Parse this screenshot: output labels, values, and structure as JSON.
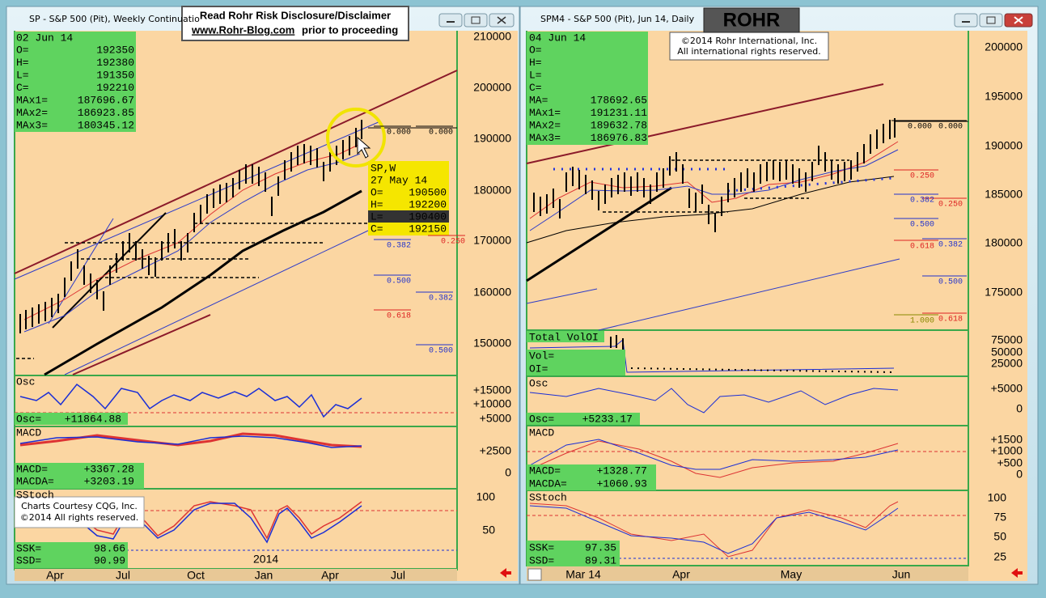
{
  "left_window": {
    "title": "SP - S&P 500 (Pit), Weekly Continuatio",
    "disclaimer": {
      "heading": "Read Rohr Risk Disclosure/Disclaimer",
      "link": "www.Rohr-Blog.com",
      "tail": "prior to proceeding"
    },
    "quote": {
      "date": "02 Jun 14",
      "rows": [
        [
          "O=",
          "192350"
        ],
        [
          "H=",
          "192380"
        ],
        [
          "L=",
          "191350"
        ],
        [
          "C=",
          "192210"
        ],
        [
          "MAx1=",
          "187696.67"
        ],
        [
          "MAx2=",
          "186923.85"
        ],
        [
          "MAx3=",
          "180345.12"
        ]
      ]
    },
    "hover": {
      "symbol": "SP,W",
      "date": "27 May 14",
      "rows": [
        [
          "O=",
          "190500"
        ],
        [
          "H=",
          "192200"
        ],
        [
          "L=",
          "190400"
        ],
        [
          "C=",
          "192150"
        ]
      ]
    },
    "fib_labels": [
      "0.000",
      "0.000",
      "0.250",
      "0.382",
      "0.500",
      "0.382",
      "0.618",
      "0.500"
    ],
    "price_axis": [
      "210000",
      "200000",
      "190000",
      "180000",
      "170000",
      "160000",
      "150000"
    ],
    "osc": {
      "title": "Osc",
      "label": "Osc=",
      "value": "+11864.88",
      "axis": [
        "+15000",
        "+10000",
        "+5000"
      ]
    },
    "macd": {
      "title": "MACD",
      "rows": [
        [
          "MACD=",
          "+3367.28"
        ],
        [
          "MACDA=",
          "+3203.19"
        ]
      ],
      "axis": [
        "+2500",
        "0"
      ]
    },
    "sstoch": {
      "title": "SStoch",
      "rows": [
        [
          "SSK=",
          "98.66"
        ],
        [
          "SSD=",
          "90.99"
        ]
      ],
      "axis": [
        "100",
        "50"
      ],
      "year": "2014"
    },
    "credit": [
      "Charts Courtesy CQG, Inc.",
      "©2014 All rights reserved."
    ],
    "time_axis": [
      "Apr",
      "Jul",
      "Oct",
      "Jan",
      "Apr",
      "Jul"
    ]
  },
  "right_window": {
    "title": "SPM4 - S&P 500 (Pit), Jun 14, Daily",
    "logo": "ROHR",
    "copyright": [
      "©2014  Rohr International, Inc.",
      "All international rights reserved."
    ],
    "quote": {
      "date": "04 Jun 14",
      "rows": [
        [
          "O="
        ],
        [
          "H="
        ],
        [
          "L="
        ],
        [
          "C="
        ],
        [
          "MA=",
          "178692.65"
        ],
        [
          "MAx1=",
          "191231.11"
        ],
        [
          "MAx2=",
          "189632.78"
        ],
        [
          "MAx3=",
          "186976.83"
        ]
      ]
    },
    "fib_labels": [
      "0.000",
      "0.000",
      "0.250",
      "0.250",
      "0.382",
      "0.500",
      "0.618",
      "0.382",
      "0.500",
      "0.618",
      "1.000"
    ],
    "price_axis": [
      "200000",
      "195000",
      "190000",
      "185000",
      "180000",
      "175000"
    ],
    "volume": {
      "title": "Total VolOI",
      "rows": [
        [
          "Vol="
        ],
        [
          "OI="
        ]
      ],
      "axis": [
        "75000",
        "50000",
        "25000"
      ]
    },
    "osc": {
      "title": "Osc",
      "label": "Osc=",
      "value": "+5233.17",
      "axis": [
        "+5000",
        "0"
      ]
    },
    "macd": {
      "title": "MACD",
      "rows": [
        [
          "MACD=",
          "+1328.77"
        ],
        [
          "MACDA=",
          "+1060.93"
        ]
      ],
      "axis": [
        "+1500",
        "+1000",
        "+500",
        "0"
      ]
    },
    "sstoch": {
      "title": "SStoch",
      "rows": [
        [
          "SSK=",
          "97.35"
        ],
        [
          "SSD=",
          "89.31"
        ]
      ],
      "axis": [
        "100",
        "75",
        "50",
        "25"
      ]
    },
    "time_axis": [
      "Mar 14",
      "Apr",
      "May",
      "Jun"
    ]
  }
}
